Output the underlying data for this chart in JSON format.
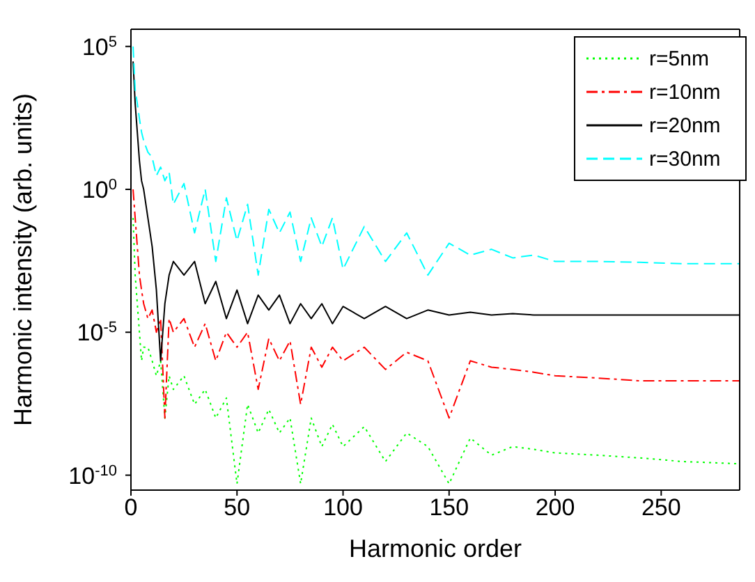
{
  "chart_data": {
    "type": "line",
    "xlabel": "Harmonic order",
    "ylabel": "Harmonic intensity (arb. units)",
    "x": [
      1,
      2,
      3,
      4,
      5,
      6,
      8,
      10,
      12,
      14,
      16,
      18,
      20,
      25,
      30,
      35,
      40,
      45,
      50,
      55,
      60,
      65,
      70,
      75,
      80,
      85,
      90,
      95,
      100,
      110,
      120,
      130,
      140,
      150,
      160,
      170,
      180,
      190,
      200,
      220,
      240,
      260,
      287
    ],
    "series": [
      {
        "name": "r=5nm",
        "color": "#00ff00",
        "line_style": "dotted",
        "values": [
          0.1,
          0.001,
          0.0001,
          1e-05,
          1e-06,
          3e-06,
          3e-06,
          1e-06,
          3e-07,
          1e-06,
          1e-08,
          3e-07,
          1e-07,
          3e-07,
          3e-08,
          1e-07,
          1e-08,
          5e-08,
          5e-11,
          3e-08,
          3e-09,
          2e-08,
          3e-09,
          1e-08,
          5e-11,
          1e-08,
          1e-09,
          6e-09,
          1e-09,
          5e-09,
          3e-10,
          3e-09,
          1e-09,
          5e-11,
          2e-09,
          5e-10,
          1e-09,
          8e-10,
          6e-10,
          5e-10,
          4e-10,
          3e-10,
          2.5e-10
        ]
      },
      {
        "name": "r=10nm",
        "color": "#ff0000",
        "line_style": "dashdot",
        "values": [
          1,
          0.1,
          0.01,
          0.001,
          0.0003,
          0.0001,
          3e-05,
          6e-05,
          1e-05,
          3e-05,
          1e-08,
          3e-05,
          1e-05,
          3e-05,
          3e-06,
          2e-05,
          1e-06,
          1e-05,
          3e-06,
          1e-05,
          1e-07,
          6e-06,
          1e-06,
          5e-06,
          3e-08,
          3e-06,
          6e-07,
          3e-06,
          1e-06,
          3e-06,
          5e-07,
          2e-06,
          1e-06,
          1e-08,
          1e-06,
          6e-07,
          5e-07,
          4e-07,
          3e-07,
          2.5e-07,
          2e-07,
          2e-07,
          2e-07
        ]
      },
      {
        "name": "r=20nm",
        "color": "#000000",
        "line_style": "solid",
        "values": [
          30000.0,
          1000,
          100,
          10,
          2,
          1,
          0.1,
          0.01,
          0.0003,
          1e-06,
          0.0001,
          0.001,
          0.003,
          0.001,
          0.003,
          0.0001,
          0.0006,
          3e-05,
          0.0003,
          2e-05,
          0.0002,
          6e-05,
          0.0002,
          2e-05,
          0.0001,
          3e-05,
          0.0001,
          2e-05,
          8e-05,
          3e-05,
          8e-05,
          3e-05,
          6e-05,
          4e-05,
          5e-05,
          4e-05,
          4.5e-05,
          4e-05,
          4e-05,
          4e-05,
          4e-05,
          4e-05,
          4e-05
        ]
      },
      {
        "name": "r=30nm",
        "color": "#00ffff",
        "line_style": "dashed",
        "values": [
          100000.0,
          3000.0,
          1000,
          300,
          100,
          50,
          20,
          13,
          3,
          6,
          2,
          4,
          0.3,
          1.6,
          0.03,
          1,
          0.003,
          0.5,
          0.016,
          0.3,
          0.001,
          0.2,
          0.03,
          0.16,
          0.003,
          0.1,
          0.01,
          0.1,
          0.0016,
          0.05,
          0.003,
          0.03,
          0.001,
          0.013,
          0.005,
          0.008,
          0.004,
          0.005,
          0.003,
          0.003,
          0.0028,
          0.0025,
          0.0025
        ]
      }
    ],
    "xlim": [
      0,
      287
    ],
    "xticks": [
      0,
      50,
      100,
      150,
      200,
      250
    ],
    "ylim": [
      3e-11,
      400000.0
    ],
    "yticks": [
      {
        "value": 1e-10,
        "label": "10$^{-10}$"
      },
      {
        "value": 1e-05,
        "label": "10$^{-5}$"
      },
      {
        "value": 1,
        "label": "10$^{0}$"
      },
      {
        "value": 100000.0,
        "label": "10$^{5}$"
      }
    ],
    "log": "y",
    "grid": false,
    "legend": "top right"
  }
}
